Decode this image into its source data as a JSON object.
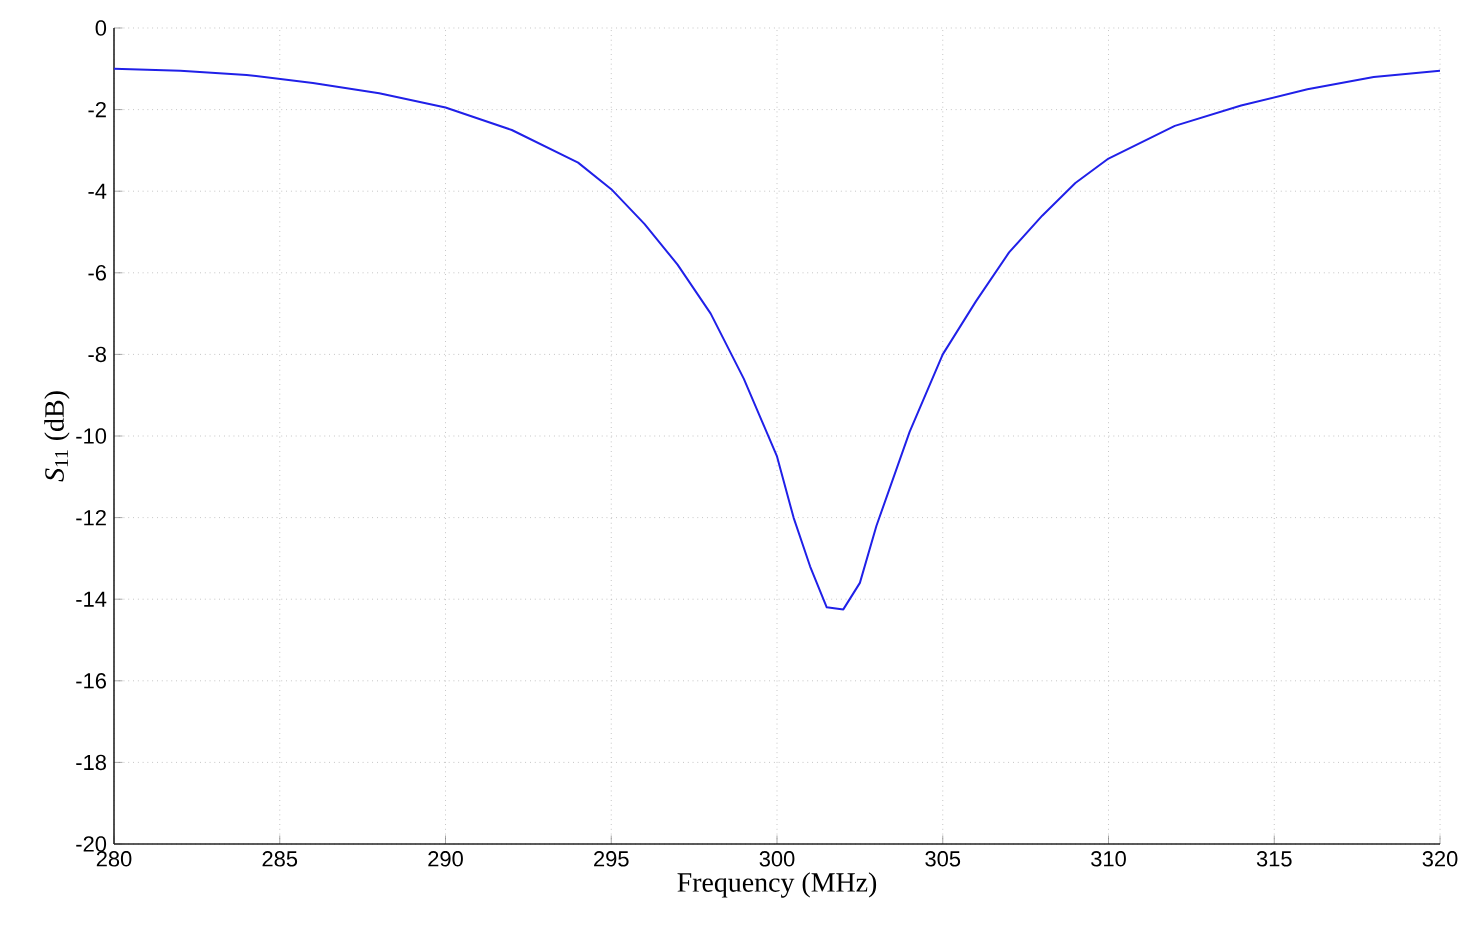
{
  "chart_data": {
    "type": "line",
    "xlabel": "Frequency (MHz)",
    "ylabel": "*S*$_{11}$ (dB)",
    "x": [
      280,
      282,
      284,
      286,
      288,
      290,
      292,
      294,
      295,
      296,
      297,
      298,
      299,
      300,
      300.5,
      301,
      301.5,
      302,
      302.5,
      303,
      304,
      305,
      306,
      307,
      308,
      309,
      310,
      312,
      314,
      316,
      318,
      320
    ],
    "series": [
      {
        "color": "#2020e8",
        "values": [
          -1.0,
          -1.05,
          -1.15,
          -1.35,
          -1.6,
          -1.95,
          -2.5,
          -3.3,
          -3.95,
          -4.8,
          -5.8,
          -7.0,
          -8.6,
          -10.5,
          -12.0,
          -13.2,
          -14.2,
          -14.25,
          -13.6,
          -12.2,
          -9.9,
          -8.0,
          -6.7,
          -5.5,
          -4.6,
          -3.8,
          -3.2,
          -2.4,
          -1.9,
          -1.5,
          -1.2,
          -1.05
        ]
      }
    ],
    "xlim": [
      280,
      320
    ],
    "ylim": [
      -20,
      0
    ],
    "xticks": [
      280,
      285,
      290,
      295,
      300,
      305,
      310,
      315,
      320
    ],
    "yticks": [
      -20,
      -18,
      -16,
      -14,
      -12,
      -10,
      -8,
      -6,
      -4,
      -2,
      0
    ],
    "grid": true,
    "marker": "none",
    "line_style": "solid",
    "legend": false
  }
}
